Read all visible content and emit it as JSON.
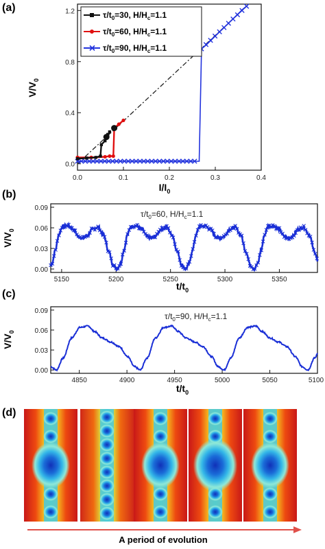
{
  "panel_labels": {
    "a": "(a)",
    "b": "(b)",
    "c": "(c)",
    "d": "(d)"
  },
  "evolution_caption": "A period of evolution",
  "colors": {
    "series_30": "#111111",
    "series_60": "#e01010",
    "series_90": "#2233dd",
    "ohmic_line": "#222222",
    "wave": "#1a2fd6",
    "arrow": "#e0504a"
  },
  "chart_data": [
    {
      "type": "line",
      "panel": "(a)",
      "xlabel": "I/I0",
      "ylabel": "V/V0",
      "xlim": [
        0.0,
        0.4
      ],
      "ylim": [
        -0.05,
        1.25
      ],
      "xticks": [
        "0.0",
        "0.1",
        "0.2",
        "0.3",
        "0.4"
      ],
      "yticks": [
        "0.0",
        "0.4",
        "0.8",
        "1.2"
      ],
      "legend_position": "top-left",
      "series": [
        {
          "name": "τ/t0=30, H/Hc=1.1",
          "marker": "square",
          "x": [
            0.0,
            0.02,
            0.04,
            0.05,
            0.052,
            0.06,
            0.063,
            0.066,
            0.07
          ],
          "y": [
            0.04,
            0.045,
            0.05,
            0.06,
            0.15,
            0.18,
            0.2,
            0.23,
            0.25
          ]
        },
        {
          "name": "τ/t0=60, H/Hc=1.1",
          "marker": "circle",
          "x": [
            0.0,
            0.03,
            0.06,
            0.07,
            0.078,
            0.08,
            0.09,
            0.1
          ],
          "y": [
            0.05,
            0.05,
            0.055,
            0.06,
            0.06,
            0.28,
            0.31,
            0.34
          ]
        },
        {
          "name": "τ/t0=90, H/Hc=1.1",
          "marker": "x",
          "x": [
            0.0,
            0.05,
            0.1,
            0.15,
            0.2,
            0.25,
            0.265,
            0.27,
            0.28,
            0.3,
            0.32,
            0.34,
            0.36,
            0.37
          ],
          "y": [
            0.02,
            0.02,
            0.02,
            0.02,
            0.02,
            0.02,
            0.02,
            0.9,
            0.93,
            1.0,
            1.07,
            1.14,
            1.21,
            1.24
          ]
        }
      ],
      "ohmic_line": {
        "x": [
          0.0,
          0.37
        ],
        "y": [
          0.0,
          1.24
        ]
      },
      "highlight_points": {
        "x": [
          0.063,
          0.08
        ],
        "y": [
          0.21,
          0.28
        ]
      }
    },
    {
      "type": "line",
      "panel": "(b)",
      "annotation": "τ/t0=60, H/Hc=1.1",
      "xlabel": "t/t0",
      "ylabel": "V/V0",
      "xlim": [
        5140,
        5385
      ],
      "ylim": [
        -0.005,
        0.095
      ],
      "xticks": [
        "5150",
        "5200",
        "5250",
        "5300",
        "5350"
      ],
      "yticks": [
        "0.00",
        "0.03",
        "0.06",
        "0.09"
      ],
      "waveform": {
        "period": 63,
        "phase": 5138,
        "t": [
          0,
          0.05,
          0.1,
          0.15,
          0.2,
          0.28,
          0.36,
          0.44,
          0.5,
          0.56,
          0.64,
          0.72,
          0.8,
          0.88,
          0.94,
          1.0
        ],
        "v": [
          0.0,
          0.008,
          0.028,
          0.05,
          0.062,
          0.063,
          0.058,
          0.047,
          0.045,
          0.048,
          0.058,
          0.061,
          0.05,
          0.025,
          0.006,
          0.0
        ]
      }
    },
    {
      "type": "line",
      "panel": "(c)",
      "annotation": "τ/t0=90, H/Hc=1.1",
      "xlabel": "t/t0",
      "ylabel": "V/V0",
      "xlim": [
        4820,
        5100
      ],
      "ylim": [
        -0.005,
        0.095
      ],
      "xticks": [
        "4850",
        "4900",
        "4950",
        "5000",
        "5050",
        "5100"
      ],
      "yticks": [
        "0.00",
        "0.03",
        "0.06",
        "0.09"
      ],
      "waveform": {
        "period": 88,
        "phase": 4826,
        "t": [
          0,
          0.08,
          0.18,
          0.28,
          0.38,
          0.45,
          0.55,
          0.65,
          0.75,
          0.85,
          0.93,
          1.0
        ],
        "v": [
          0.0,
          0.018,
          0.048,
          0.064,
          0.066,
          0.058,
          0.048,
          0.042,
          0.035,
          0.02,
          0.005,
          0.0
        ]
      }
    }
  ],
  "snapshots": [
    {
      "shape": "diamond",
      "core_scale": 1.0
    },
    {
      "shape": "chain",
      "core_scale": 0.45
    },
    {
      "shape": "diamond",
      "core_scale": 1.0
    },
    {
      "shape": "diamond",
      "core_scale": 1.15
    },
    {
      "shape": "diamond",
      "core_scale": 1.0
    }
  ]
}
